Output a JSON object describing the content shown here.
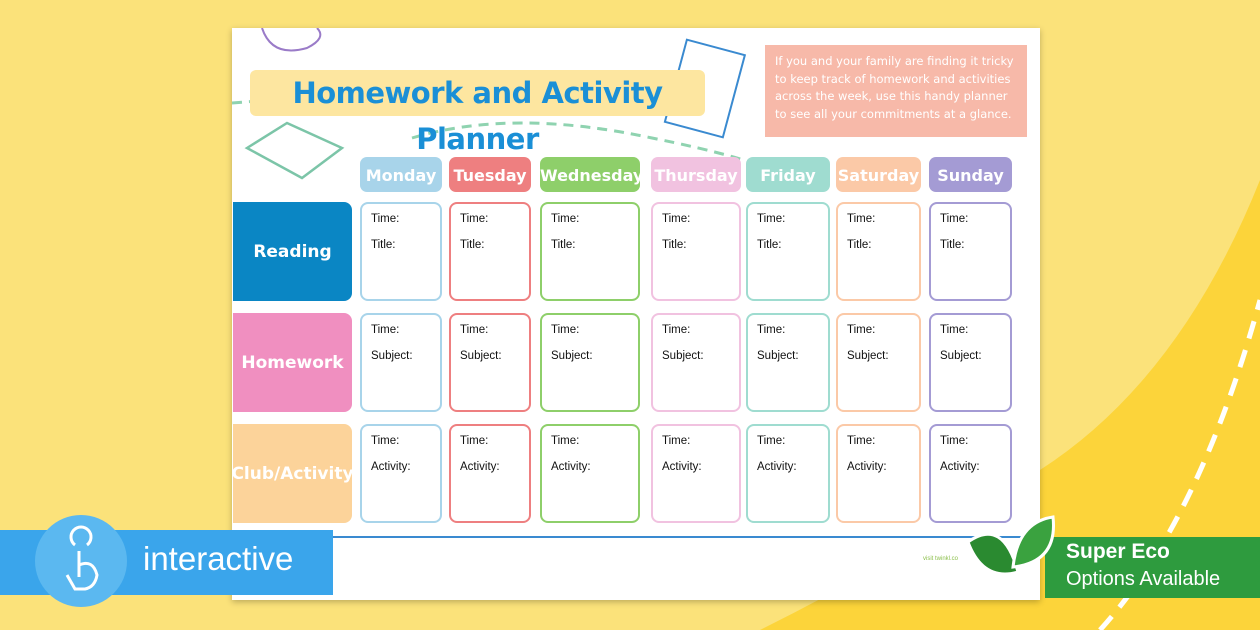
{
  "header": {
    "title": "Homework and Activity Planner",
    "intro": "If you and your family are finding it tricky to keep track of homework and activities across the week, use this handy planner to see all your commitments at a glance."
  },
  "days": [
    "Monday",
    "Tuesday",
    "Wednesday",
    "Thursday",
    "Friday",
    "Saturday",
    "Sunday"
  ],
  "rows": [
    {
      "label": "Reading",
      "fields": [
        "Time:",
        "Title:"
      ]
    },
    {
      "label": "Homework",
      "fields": [
        "Time:",
        "Subject:"
      ]
    },
    {
      "label": "Club/Activity",
      "fields": [
        "Time:",
        "Activity:"
      ]
    }
  ],
  "footer": "visit twinkl.co",
  "badges": {
    "interactive": "interactive",
    "eco_title": "Super Eco",
    "eco_subtitle": "Options Available"
  }
}
